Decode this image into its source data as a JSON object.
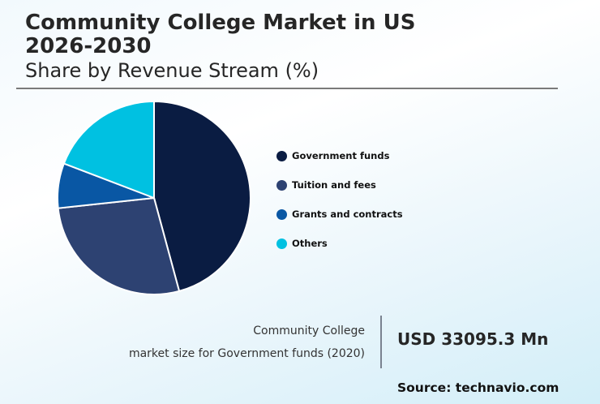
{
  "header": {
    "title_line1": "Community College Market in US",
    "title_line2": "2026-2030",
    "subtitle": "Share by Revenue Stream (%)"
  },
  "chart_data": {
    "type": "pie",
    "title": "Community College Market in US 2026-2030",
    "subtitle": "Share by Revenue Stream (%)",
    "categories": [
      "Government funds",
      "Tuition and fees",
      "Grants and contracts",
      "Others"
    ],
    "values": [
      45.8,
      27.5,
      7.5,
      19.2
    ],
    "colors": [
      "#0a1c42",
      "#2d4272",
      "#0957a4",
      "#00c1e1"
    ],
    "start_angle": "top, clockwise",
    "legend_position": "right"
  },
  "legend": {
    "items": [
      {
        "label": "Government funds",
        "color": "#0a1c42"
      },
      {
        "label": "Tuition and fees",
        "color": "#2d4272"
      },
      {
        "label": "Grants and contracts",
        "color": "#0957a4"
      },
      {
        "label": "Others",
        "color": "#00c1e1"
      }
    ]
  },
  "stat": {
    "label_line1": "Community College",
    "label_line2": "market size for Government funds (2020)",
    "value": "USD 33095.3 Mn"
  },
  "footer": {
    "source": "Source: technavio.com"
  }
}
